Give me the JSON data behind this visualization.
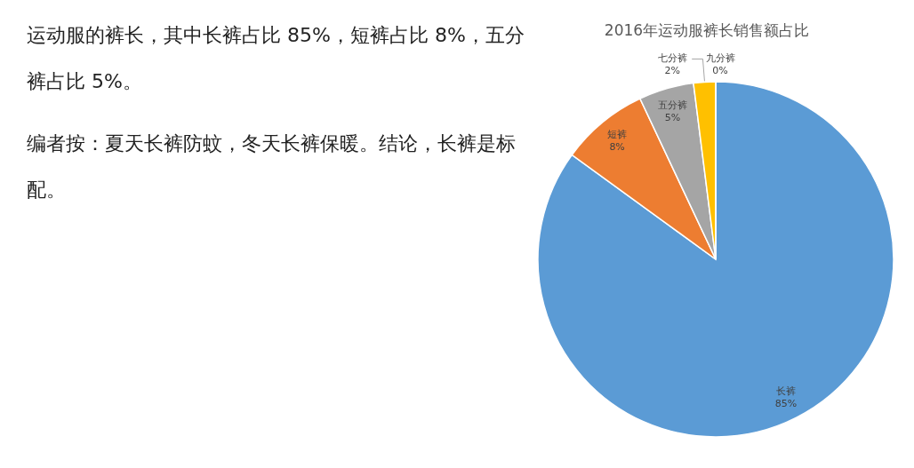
{
  "chart_data": {
    "type": "pie",
    "title": "2016年运动服裤长销售额占比",
    "categories": [
      "长裤",
      "短裤",
      "五分裤",
      "七分裤",
      "九分裤"
    ],
    "values": [
      85,
      8,
      5,
      2,
      0
    ],
    "colors": [
      "#5b9bd5",
      "#ed7d31",
      "#a5a5a5",
      "#ffc000",
      "#4472c4"
    ],
    "value_labels": [
      "85%",
      "8%",
      "5%",
      "2%",
      "0%"
    ],
    "annotations": [
      "运动服的裤长，其中长裤占比 85%，短裤占比 8%，五分裤占比 5%。",
      "编者按：夏天长裤防蚊，冬天长裤保暖。结论，长裤是标配。"
    ]
  }
}
